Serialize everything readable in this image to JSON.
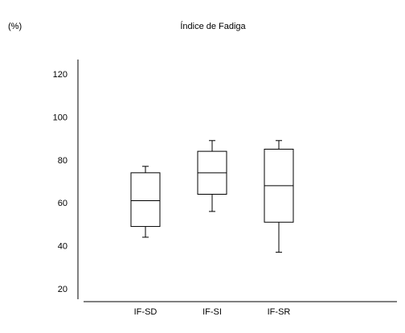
{
  "chart_data": {
    "type": "box",
    "title": "Índice de Fadiga",
    "ylabel": "(%)",
    "xlabel": "",
    "categories": [
      "IF-SD",
      "IF-SI",
      "IF-SR"
    ],
    "y_ticks": [
      20,
      40,
      60,
      80,
      100,
      120
    ],
    "ylim": [
      14,
      126
    ],
    "boxes": [
      {
        "category": "IF-SD",
        "whisker_low": 44,
        "q1": 49,
        "median": 61,
        "q3": 74,
        "whisker_high": 77
      },
      {
        "category": "IF-SI",
        "whisker_low": 56,
        "q1": 64,
        "median": 74,
        "q3": 84,
        "whisker_high": 89
      },
      {
        "category": "IF-SR",
        "whisker_low": 37,
        "q1": 51,
        "median": 68,
        "q3": 85,
        "whisker_high": 89
      }
    ],
    "grid": false,
    "legend": "none",
    "line_color": "#000000"
  }
}
